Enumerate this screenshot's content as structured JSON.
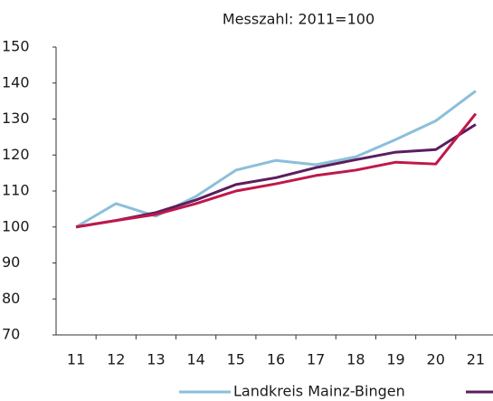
{
  "chart_data": {
    "type": "line",
    "title": "Messzahl: 2011=100",
    "categories": [
      "11",
      "12",
      "13",
      "14",
      "15",
      "16",
      "17",
      "18",
      "19",
      "20",
      "21"
    ],
    "series": [
      {
        "name": "Landkreis Mainz-Bingen",
        "color": "#8bbfd9",
        "values": [
          100,
          106.5,
          103,
          108.5,
          115.8,
          118.5,
          117.3,
          119.5,
          124.3,
          129.5,
          137.8
        ]
      },
      {
        "color": "#5b1e5e",
        "values": [
          100,
          101.8,
          104,
          107.5,
          111.8,
          113.7,
          116.5,
          118.7,
          120.8,
          121.5,
          128.5
        ]
      },
      {
        "color": "#c0184a",
        "values": [
          100,
          101.8,
          103.5,
          106.5,
          110,
          112,
          114.3,
          115.8,
          118,
          117.5,
          131.5
        ]
      }
    ],
    "ylim": [
      70,
      150
    ],
    "yticks": [
      70,
      80,
      90,
      100,
      110,
      120,
      130,
      140,
      150
    ],
    "grid": false
  }
}
